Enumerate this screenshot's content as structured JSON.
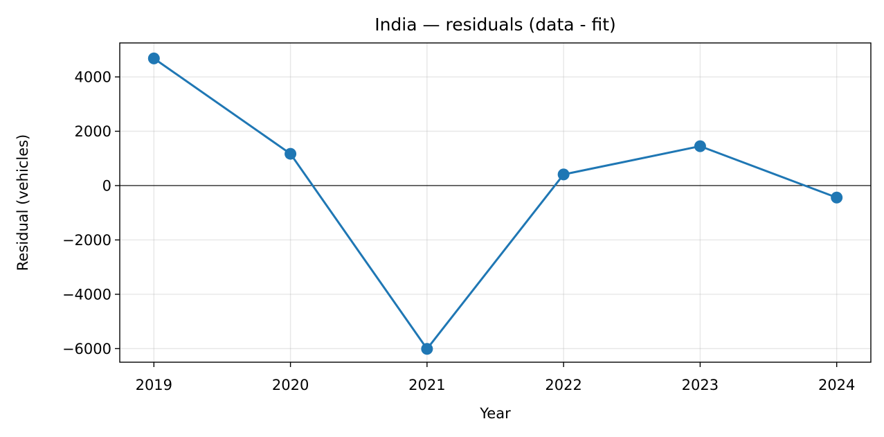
{
  "chart_data": {
    "type": "line",
    "title": "India — residuals (data - fit)",
    "xlabel": "Year",
    "ylabel": "Residual (vehicles)",
    "x": [
      2019,
      2020,
      2021,
      2022,
      2023,
      2024
    ],
    "x_tick_labels": [
      "2019",
      "2020",
      "2021",
      "2022",
      "2023",
      "2024"
    ],
    "y_ticks": [
      4000,
      2000,
      0,
      -2000,
      -4000,
      -6000
    ],
    "y_tick_labels": [
      "4000",
      "2000",
      "0",
      "−2000",
      "−4000",
      "−6000"
    ],
    "ylim": [
      -6500,
      5250
    ],
    "xlim": [
      2018.75,
      2024.25
    ],
    "series": [
      {
        "values": [
          4680,
          1170,
          -6010,
          410,
          1450,
          -440
        ],
        "color": "#1f77b4"
      }
    ],
    "zero_line": true,
    "grid": true
  }
}
